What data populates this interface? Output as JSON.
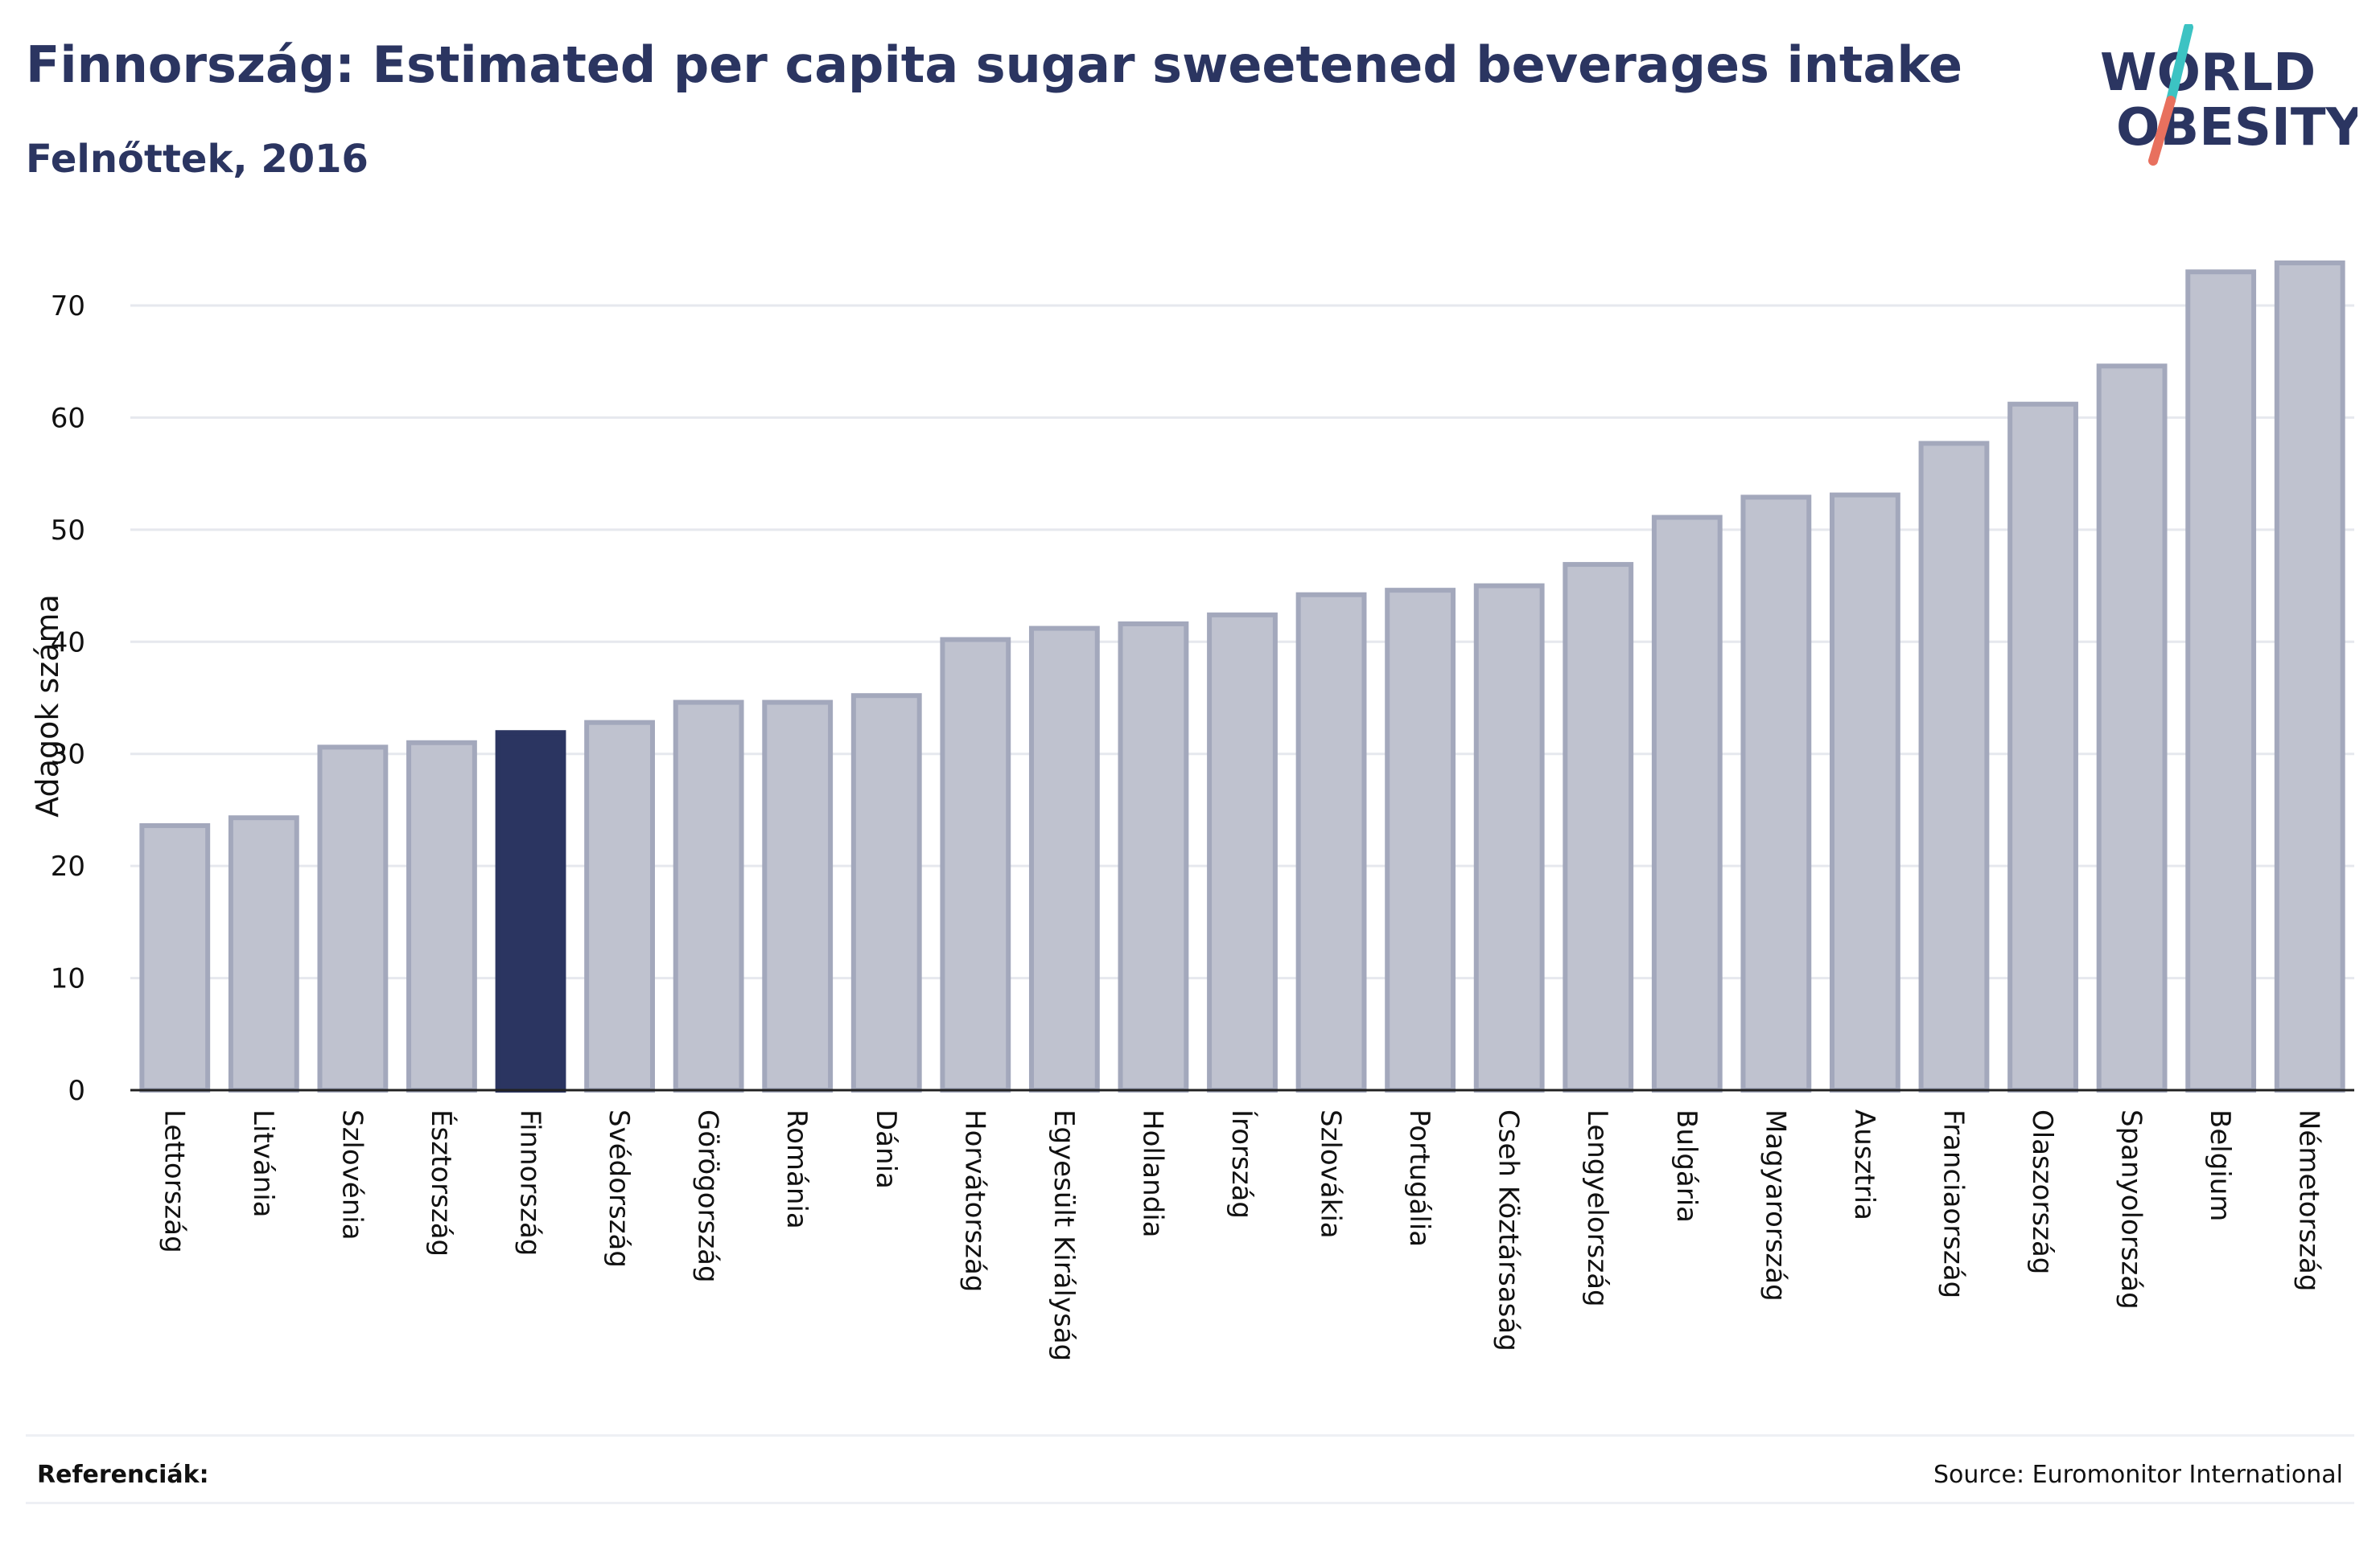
{
  "title": "Finnország: Estimated per capita sugar sweetened beverages intake",
  "subtitle": "Felnőttek, 2016",
  "logo": {
    "line1": "WORLD",
    "line2": "OBESITY"
  },
  "footer": {
    "references_label": "Referenciák:",
    "source": "Source: Euromonitor International"
  },
  "colors": {
    "title": "#2b3561",
    "bar": "#bfc2cf",
    "bar_stroke": "#a3a8bc",
    "highlight": "#2b3561",
    "logo_slash_top": "#3cc3c3",
    "logo_slash_bottom": "#e8705e"
  },
  "chart_data": {
    "type": "bar",
    "ylabel": "Adagok száma",
    "xlabel": "",
    "ylim": [
      0,
      75
    ],
    "yticks": [
      0,
      10,
      20,
      30,
      40,
      50,
      60,
      70
    ],
    "grid": true,
    "highlight": "Finnország",
    "categories": [
      "Lettország",
      "Litvánia",
      "Szlovénia",
      "Észtország",
      "Finnország",
      "Svédország",
      "Görögország",
      "Románia",
      "Dánia",
      "Horvátország",
      "Egyesült Királyság",
      "Hollandia",
      "Írország",
      "Szlovákia",
      "Portugália",
      "Cseh Köztársaság",
      "Lengyelország",
      "Bulgária",
      "Magyarország",
      "Ausztria",
      "Franciaország",
      "Olaszország",
      "Spanyolország",
      "Belgium",
      "Németország"
    ],
    "values": [
      23.6,
      24.3,
      30.6,
      31.0,
      31.9,
      32.8,
      34.6,
      34.6,
      35.2,
      40.2,
      41.2,
      41.6,
      42.4,
      44.2,
      44.6,
      45.0,
      46.9,
      51.1,
      52.9,
      53.1,
      57.7,
      61.2,
      64.6,
      73.0,
      73.8
    ]
  }
}
